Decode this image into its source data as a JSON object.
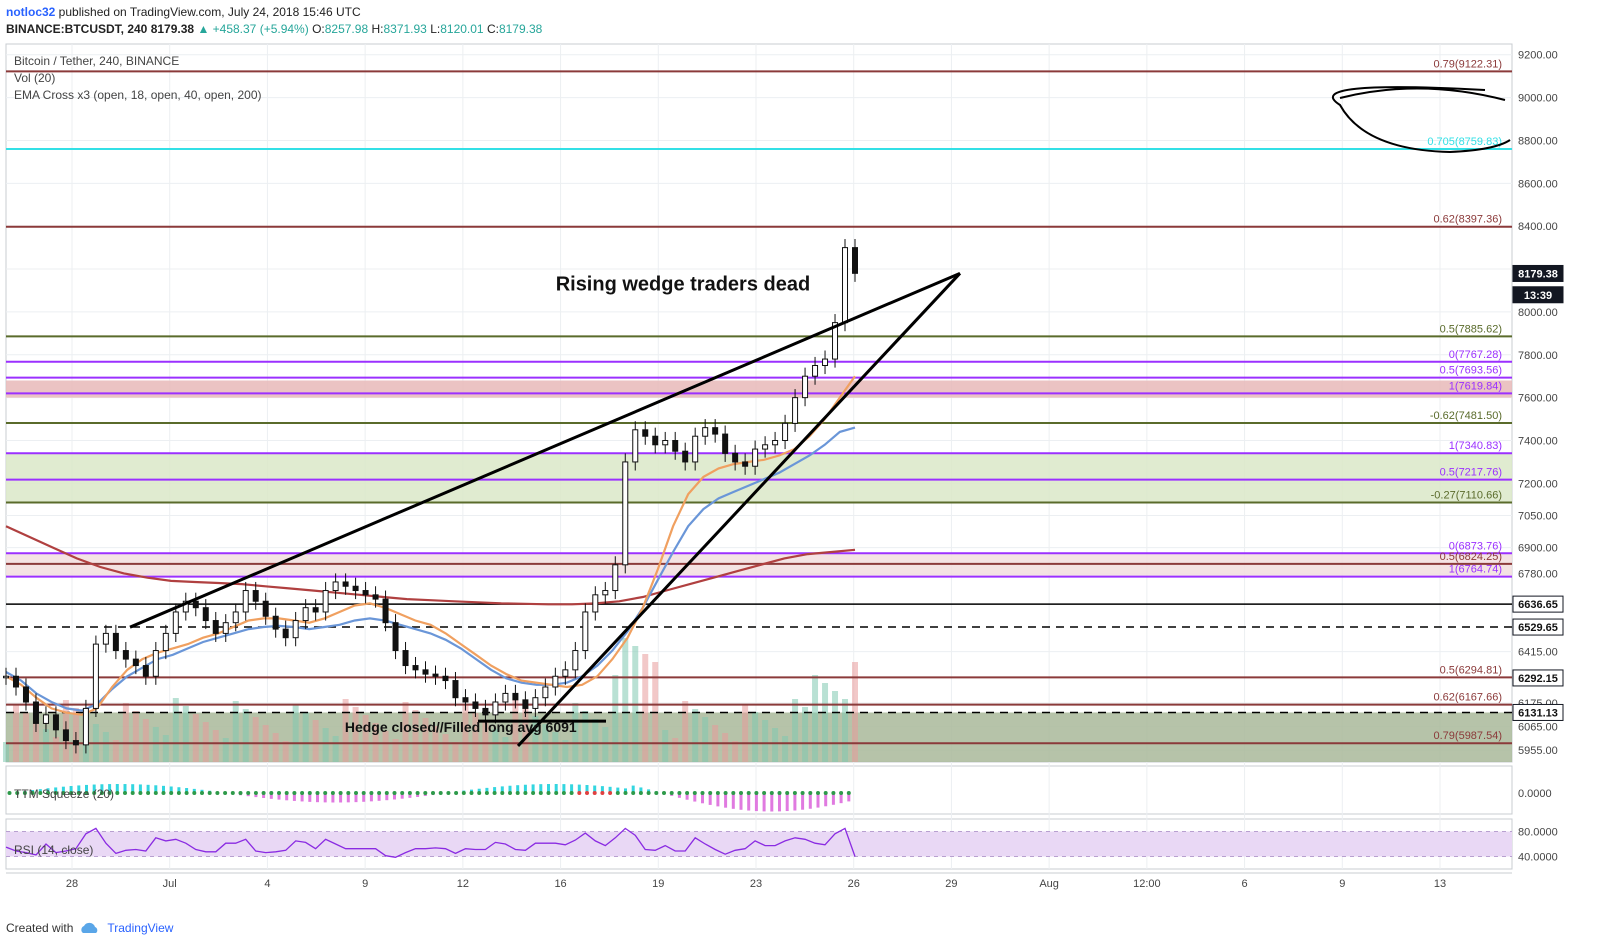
{
  "header": {
    "author": "notloc32",
    "published": " published on TradingView.com, July 24, 2018 15:46 UTC",
    "symbol": "BINANCE:BTCUSDT, 240",
    "last": "8179.38",
    "change": "▲ +458.37 (+5.94%)",
    "o_label": "O:",
    "o": "8257.98",
    "h_label": "H:",
    "h": "8371.93",
    "l_label": "L:",
    "l": "8120.01",
    "c_label": "C:",
    "c": "8179.38"
  },
  "overlays": {
    "pair": "Bitcoin / Tether, 240, BINANCE",
    "vol": "Vol (20)",
    "ema": "EMA Cross x3 (open, 18, open, 40, open, 200)"
  },
  "colors": {
    "grid": "#eceff2",
    "brown": "#8b3a3a",
    "green": "#5a6b2b",
    "purple": "#9b30ff",
    "cyan": "#33e0e6",
    "black": "#000000",
    "ema_fast": "#f0a060",
    "ema_mid": "#6a96d8",
    "ema_slow": "#b04040"
  },
  "chart_data": {
    "type": "line",
    "title": "",
    "ylim": [
      5900,
      9250
    ],
    "y_axis_ticks": [
      "9200.00",
      "9000.00",
      "8800.00",
      "8600.00",
      "8400.00",
      "8200.00",
      "8000.00",
      "7800.00",
      "7600.00",
      "7400.00",
      "7200.00",
      "7050.00",
      "6900.00",
      "6780.00",
      "6415.00",
      "6175.00",
      "6065.00",
      "5955.00"
    ],
    "x_axis_ticks": [
      "28",
      "Jul",
      "4",
      "9",
      "12",
      "16",
      "19",
      "23",
      "26",
      "29",
      "Aug",
      "12:00",
      "6",
      "9",
      "13"
    ],
    "price_badges": [
      {
        "label": "8179.38",
        "value": 8179.38,
        "dark": true
      },
      {
        "label": "13:39",
        "value": 8080,
        "dark": true
      },
      {
        "label": "6636.65",
        "value": 6636.65,
        "dark": false
      },
      {
        "label": "6529.65",
        "value": 6529.65,
        "dark": false
      },
      {
        "label": "6292.15",
        "value": 6292.15,
        "dark": false
      },
      {
        "label": "6131.13",
        "value": 6131.13,
        "dark": false
      }
    ],
    "levels": [
      {
        "label": "0.79(9122.31)",
        "value": 9122.31,
        "color": "brown"
      },
      {
        "label": "0.705(8759.83)",
        "value": 8759.83,
        "color": "cyan"
      },
      {
        "label": "0.62(8397.36)",
        "value": 8397.36,
        "color": "brown"
      },
      {
        "label": "0.5(7885.62)",
        "value": 7885.62,
        "color": "green"
      },
      {
        "label": "0(7767.28)",
        "value": 7767.28,
        "color": "purple"
      },
      {
        "label": "0.5(7693.56)",
        "value": 7693.56,
        "color": "purple"
      },
      {
        "label": "1(7619.84)",
        "value": 7619.84,
        "color": "purple"
      },
      {
        "label": "-0.62(7481.50)",
        "value": 7481.5,
        "color": "green"
      },
      {
        "label": "1(7340.83)",
        "value": 7340.83,
        "color": "purple"
      },
      {
        "label": "0.5(7217.76)",
        "value": 7217.76,
        "color": "purple"
      },
      {
        "label": "-0.27(7110.66)",
        "value": 7110.66,
        "color": "green"
      },
      {
        "label": "0(6873.76)",
        "value": 6873.76,
        "color": "purple"
      },
      {
        "label": "0.5(6824.25)",
        "value": 6824.25,
        "color": "brown"
      },
      {
        "label": "1(6764.74)",
        "value": 6764.74,
        "color": "purple"
      },
      {
        "label": "0.5(6294.81)",
        "value": 6294.81,
        "color": "brown"
      },
      {
        "label": "0.62(6167.66)",
        "value": 6167.66,
        "color": "brown"
      },
      {
        "label": "0.79(5987.54)",
        "value": 5987.54,
        "color": "brown"
      }
    ],
    "zones": [
      {
        "from": 7600,
        "to": 7680,
        "color": "#e8b9b9"
      },
      {
        "from": 7110,
        "to": 7340,
        "color": "#dbe8c8"
      },
      {
        "from": 6770,
        "to": 6870,
        "color": "#f2dede"
      },
      {
        "from": 5900,
        "to": 6131,
        "color": "#a9b89a"
      }
    ],
    "dashed_levels": [
      6529.65,
      6131.13
    ],
    "solid_black_levels": [
      6636.65
    ],
    "annotations": [
      {
        "text": "Rising wedge traders dead",
        "value": 8100,
        "slot": 0.365
      },
      {
        "text": "Hedge closed//Filled long avg 6091",
        "value": 6040,
        "slot": 0.225
      }
    ],
    "price_path": [
      6300,
      6250,
      6180,
      6080,
      6120,
      6050,
      6000,
      5980,
      6150,
      6450,
      6500,
      6420,
      6380,
      6350,
      6300,
      6420,
      6500,
      6600,
      6650,
      6620,
      6560,
      6500,
      6550,
      6600,
      6700,
      6650,
      6580,
      6520,
      6480,
      6560,
      6620,
      6600,
      6700,
      6740,
      6720,
      6700,
      6680,
      6660,
      6550,
      6420,
      6350,
      6330,
      6310,
      6300,
      6280,
      6200,
      6180,
      6150,
      6120,
      6180,
      6220,
      6190,
      6150,
      6200,
      6250,
      6300,
      6330,
      6420,
      6600,
      6680,
      6700,
      6820,
      7300,
      7450,
      7420,
      7380,
      7400,
      7350,
      7300,
      7420,
      7460,
      7430,
      7340,
      7300,
      7280,
      7360,
      7380,
      7400,
      7480,
      7600,
      7700,
      7750,
      7780,
      7950,
      8300,
      8180
    ],
    "ema18": [
      6300,
      6260,
      6200,
      6150,
      6130,
      6120,
      6150,
      6250,
      6330,
      6380,
      6410,
      6430,
      6450,
      6480,
      6500,
      6530,
      6560,
      6570,
      6570,
      6560,
      6550,
      6570,
      6600,
      6630,
      6640,
      6620,
      6590,
      6560,
      6540,
      6500,
      6450,
      6400,
      6350,
      6310,
      6280,
      6270,
      6260,
      6250,
      6260,
      6300,
      6380,
      6480,
      6620,
      6800,
      7000,
      7150,
      7230,
      7270,
      7290,
      7300,
      7310,
      7330,
      7360,
      7420,
      7500,
      7600,
      7700
    ],
    "ema40": [
      6320,
      6280,
      6220,
      6180,
      6150,
      6140,
      6170,
      6240,
      6300,
      6340,
      6380,
      6400,
      6430,
      6460,
      6480,
      6500,
      6520,
      6530,
      6535,
      6530,
      6520,
      6530,
      6540,
      6560,
      6570,
      6560,
      6540,
      6520,
      6500,
      6470,
      6430,
      6380,
      6330,
      6290,
      6270,
      6260,
      6260,
      6270,
      6300,
      6350,
      6420,
      6510,
      6620,
      6750,
      6880,
      7000,
      7080,
      7130,
      7160,
      7190,
      7220,
      7250,
      7290,
      7330,
      7380,
      7440,
      7460
    ],
    "ema200": [
      7000,
      6950,
      6900,
      6850,
      6810,
      6780,
      6760,
      6745,
      6740,
      6735,
      6730,
      6720,
      6710,
      6700,
      6690,
      6680,
      6670,
      6660,
      6655,
      6650,
      6645,
      6640,
      6638,
      6636,
      6636,
      6640,
      6650,
      6670,
      6700,
      6730,
      6760,
      6790,
      6820,
      6850,
      6870,
      6880,
      6890
    ],
    "squeeze": {
      "label": "TTM Squeeze (20)",
      "ylim": [
        -1,
        1
      ],
      "ticks": [
        "0.0000"
      ]
    },
    "rsi": {
      "label": "RSI (14, close)",
      "ylim": [
        20,
        100
      ],
      "ticks": [
        "80.0000",
        "40.0000"
      ]
    }
  },
  "footer": {
    "created_with": "Created with",
    "brand": "TradingView"
  }
}
